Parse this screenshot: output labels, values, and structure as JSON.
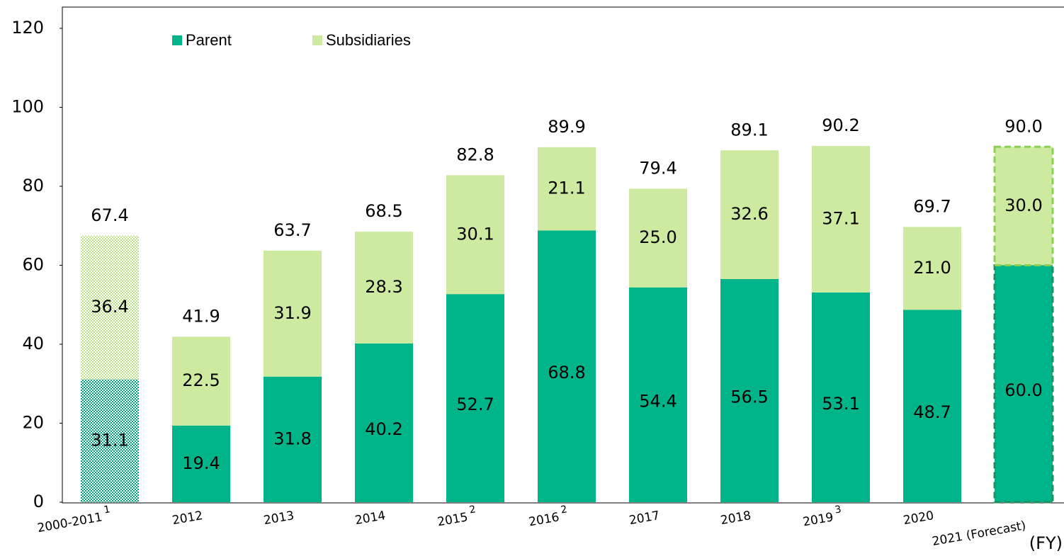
{
  "chart_data": {
    "type": "stacked_bar",
    "categories": [
      "2000-2011",
      "2012",
      "2013",
      "2014",
      "2015",
      "2016",
      "2017",
      "2018",
      "2019",
      "2020",
      "2021 (Forecast)"
    ],
    "category_footnotes": [
      "1",
      null,
      null,
      null,
      "2",
      "2",
      null,
      null,
      "3",
      null,
      null
    ],
    "bar_styles": [
      "hatched",
      "solid",
      "solid",
      "solid",
      "solid",
      "solid",
      "solid",
      "solid",
      "solid",
      "solid",
      "dashed"
    ],
    "series": [
      {
        "name": "Parent",
        "color": "#00b48a",
        "values": [
          31.1,
          19.4,
          31.8,
          40.2,
          52.7,
          68.8,
          54.4,
          56.5,
          53.1,
          48.7,
          60
        ],
        "value_labels": [
          "31.1",
          "19.4",
          "31.8",
          "40.2",
          "52.7",
          "68.8",
          "54.4",
          "56.5",
          "53.1",
          "48.7",
          "60.0"
        ]
      },
      {
        "name": "Subsidiaries",
        "color": "#cdeaa0",
        "values": [
          36.4,
          22.5,
          31.9,
          28.3,
          30.1,
          21.1,
          25,
          32.6,
          37.1,
          21,
          30
        ],
        "value_labels": [
          "36.4",
          "22.5",
          "31.9",
          "28.3",
          "30.1",
          "21.1",
          "25.0",
          "32.6",
          "37.1",
          "21.0",
          "30.0"
        ]
      }
    ],
    "totals": [
      67.4,
      41.9,
      63.7,
      68.5,
      82.8,
      89.9,
      79.4,
      89.1,
      90.2,
      69.7,
      90
    ],
    "total_labels": [
      "67.4",
      "41.9",
      "63.7",
      "68.5",
      "82.8",
      "89.9",
      "79.4",
      "89.1",
      "90.2",
      "69.7",
      "90.0"
    ],
    "x_label": "(FY)",
    "ylim": [
      0,
      120
    ],
    "yticks": [
      0,
      20,
      40,
      60,
      80,
      100,
      120
    ],
    "grid": false,
    "legend": "top-left"
  }
}
